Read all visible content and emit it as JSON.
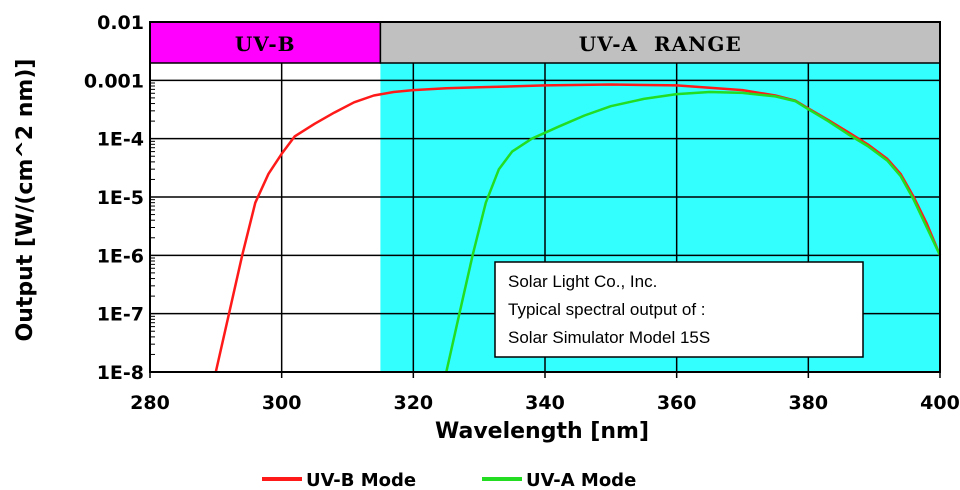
{
  "chart_data": {
    "type": "line",
    "title": "",
    "xlabel": "Wavelength [nm]",
    "ylabel": "Output [W/(cm^2 nm)]",
    "xlim": [
      280,
      400
    ],
    "x_ticks": [
      280,
      300,
      320,
      340,
      360,
      380,
      400
    ],
    "y_scale": "log",
    "ylim": [
      1e-08,
      0.01
    ],
    "y_ticks": [
      {
        "value": 0.01,
        "label": "0.01"
      },
      {
        "value": 0.001,
        "label": "0.001"
      },
      {
        "value": 0.0001,
        "label": "1E-4"
      },
      {
        "value": 1e-05,
        "label": "1E-5"
      },
      {
        "value": 1e-06,
        "label": "1E-6"
      },
      {
        "value": 1e-07,
        "label": "1E-7"
      },
      {
        "value": 1e-08,
        "label": "1E-8"
      }
    ],
    "grid": true,
    "bands": [
      {
        "label": "UV-B",
        "x_range": [
          280,
          315
        ],
        "header_color": "#ff00ff",
        "fill_color": "#ffffff"
      },
      {
        "label": "UV-A RANGE",
        "x_range": [
          315,
          400
        ],
        "header_color": "#c0c0c0",
        "fill_color": "#33ffff"
      }
    ],
    "annotation": {
      "lines": [
        "Solar Light Co., Inc.",
        "Typical spectral output of :",
        "Solar Simulator Model 15S"
      ],
      "position": "lower-right"
    },
    "legend_position": "bottom",
    "series": [
      {
        "name": "UV-B Mode",
        "color": "#ff1a1a",
        "points": [
          [
            290,
            1e-08
          ],
          [
            292,
            1e-07
          ],
          [
            294,
            1e-06
          ],
          [
            296,
            8e-06
          ],
          [
            298,
            2.5e-05
          ],
          [
            300,
            5.5e-05
          ],
          [
            302,
            0.00011
          ],
          [
            305,
            0.00018
          ],
          [
            308,
            0.00028
          ],
          [
            311,
            0.00042
          ],
          [
            314,
            0.00055
          ],
          [
            317,
            0.00063
          ],
          [
            320,
            0.00068
          ],
          [
            325,
            0.00073
          ],
          [
            330,
            0.00076
          ],
          [
            340,
            0.00082
          ],
          [
            350,
            0.00085
          ],
          [
            360,
            0.00082
          ],
          [
            370,
            0.00068
          ],
          [
            375,
            0.00055
          ],
          [
            378,
            0.00045
          ],
          [
            380,
            0.00033
          ],
          [
            383,
            0.00021
          ],
          [
            386,
            0.00013
          ],
          [
            389,
            8e-05
          ],
          [
            392,
            4.5e-05
          ],
          [
            394,
            2.5e-05
          ],
          [
            396,
            1e-05
          ],
          [
            398,
            3.5e-06
          ],
          [
            400,
            1e-06
          ]
        ]
      },
      {
        "name": "UV-A Mode",
        "color": "#22dd22",
        "points": [
          [
            325,
            1e-08
          ],
          [
            327,
            1e-07
          ],
          [
            329,
            1e-06
          ],
          [
            331,
            8e-06
          ],
          [
            333,
            3e-05
          ],
          [
            335,
            6e-05
          ],
          [
            338,
            0.0001
          ],
          [
            342,
            0.00016
          ],
          [
            346,
            0.00025
          ],
          [
            350,
            0.00036
          ],
          [
            355,
            0.00048
          ],
          [
            360,
            0.00058
          ],
          [
            365,
            0.00063
          ],
          [
            370,
            0.00061
          ],
          [
            375,
            0.00053
          ],
          [
            378,
            0.00044
          ],
          [
            380,
            0.00032
          ],
          [
            383,
            0.0002
          ],
          [
            386,
            0.00012
          ],
          [
            389,
            7.5e-05
          ],
          [
            392,
            4.2e-05
          ],
          [
            394,
            2.3e-05
          ],
          [
            396,
            9e-06
          ],
          [
            398,
            3e-06
          ],
          [
            400,
            1e-06
          ]
        ]
      }
    ]
  }
}
